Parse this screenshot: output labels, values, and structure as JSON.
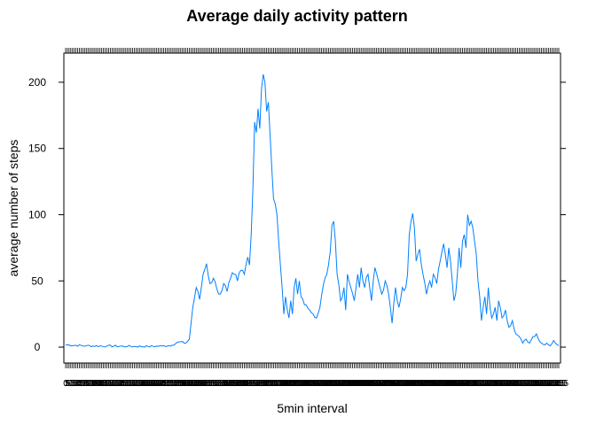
{
  "chart_data": {
    "type": "line",
    "title": "Average daily activity pattern",
    "xlabel": "5min interval",
    "ylabel": "average number of steps",
    "ylim": [
      -12,
      222
    ],
    "yticks": [
      0,
      50,
      100,
      150,
      200
    ],
    "n_intervals": 288,
    "grid": false,
    "legend": "none",
    "line_color": "#0080ff",
    "keypoints": [
      [
        0,
        1.7
      ],
      [
        12,
        1.0
      ],
      [
        24,
        0.8
      ],
      [
        36,
        0.6
      ],
      [
        48,
        0.5
      ],
      [
        56,
        0.8
      ],
      [
        62,
        1.5
      ],
      [
        66,
        4.0
      ],
      [
        70,
        3.0
      ],
      [
        72,
        6.0
      ],
      [
        74,
        30
      ],
      [
        76,
        45
      ],
      [
        78,
        36
      ],
      [
        80,
        55
      ],
      [
        82,
        63
      ],
      [
        84,
        48
      ],
      [
        86,
        52
      ],
      [
        88,
        44
      ],
      [
        90,
        40
      ],
      [
        92,
        48
      ],
      [
        94,
        42
      ],
      [
        96,
        52
      ],
      [
        98,
        55
      ],
      [
        100,
        50
      ],
      [
        102,
        58
      ],
      [
        104,
        55
      ],
      [
        106,
        68
      ],
      [
        107,
        62
      ],
      [
        108,
        85
      ],
      [
        109,
        120
      ],
      [
        110,
        170
      ],
      [
        111,
        162
      ],
      [
        112,
        180
      ],
      [
        113,
        165
      ],
      [
        114,
        195
      ],
      [
        115,
        206
      ],
      [
        116,
        200
      ],
      [
        117,
        178
      ],
      [
        118,
        185
      ],
      [
        119,
        160
      ],
      [
        120,
        135
      ],
      [
        121,
        112
      ],
      [
        122,
        108
      ],
      [
        123,
        100
      ],
      [
        124,
        80
      ],
      [
        125,
        62
      ],
      [
        126,
        45
      ],
      [
        127,
        25
      ],
      [
        128,
        38
      ],
      [
        129,
        28
      ],
      [
        130,
        22
      ],
      [
        131,
        35
      ],
      [
        132,
        25
      ],
      [
        133,
        45
      ],
      [
        134,
        52
      ],
      [
        135,
        40
      ],
      [
        136,
        50
      ],
      [
        137,
        38
      ],
      [
        140,
        32
      ],
      [
        142,
        28
      ],
      [
        144,
        25
      ],
      [
        146,
        22
      ],
      [
        148,
        30
      ],
      [
        150,
        47
      ],
      [
        152,
        55
      ],
      [
        154,
        72
      ],
      [
        155,
        92
      ],
      [
        156,
        95
      ],
      [
        157,
        80
      ],
      [
        158,
        55
      ],
      [
        160,
        35
      ],
      [
        162,
        45
      ],
      [
        163,
        28
      ],
      [
        164,
        55
      ],
      [
        166,
        45
      ],
      [
        168,
        35
      ],
      [
        170,
        55
      ],
      [
        171,
        45
      ],
      [
        172,
        60
      ],
      [
        174,
        45
      ],
      [
        176,
        55
      ],
      [
        178,
        35
      ],
      [
        180,
        60
      ],
      [
        182,
        50
      ],
      [
        184,
        40
      ],
      [
        186,
        50
      ],
      [
        188,
        40
      ],
      [
        189,
        30
      ],
      [
        190,
        18
      ],
      [
        192,
        45
      ],
      [
        193,
        35
      ],
      [
        194,
        30
      ],
      [
        196,
        45
      ],
      [
        198,
        45
      ],
      [
        199,
        55
      ],
      [
        200,
        85
      ],
      [
        201,
        95
      ],
      [
        202,
        101
      ],
      [
        203,
        90
      ],
      [
        204,
        65
      ],
      [
        205,
        70
      ],
      [
        206,
        74
      ],
      [
        208,
        55
      ],
      [
        210,
        40
      ],
      [
        212,
        50
      ],
      [
        213,
        45
      ],
      [
        214,
        55
      ],
      [
        216,
        48
      ],
      [
        218,
        65
      ],
      [
        219,
        72
      ],
      [
        220,
        78
      ],
      [
        221,
        70
      ],
      [
        222,
        60
      ],
      [
        223,
        75
      ],
      [
        224,
        65
      ],
      [
        225,
        50
      ],
      [
        226,
        35
      ],
      [
        227,
        40
      ],
      [
        228,
        55
      ],
      [
        229,
        75
      ],
      [
        230,
        60
      ],
      [
        231,
        80
      ],
      [
        232,
        85
      ],
      [
        233,
        75
      ],
      [
        234,
        100
      ],
      [
        235,
        92
      ],
      [
        236,
        95
      ],
      [
        237,
        90
      ],
      [
        238,
        80
      ],
      [
        239,
        70
      ],
      [
        240,
        50
      ],
      [
        241,
        38
      ],
      [
        242,
        20
      ],
      [
        243,
        30
      ],
      [
        244,
        38
      ],
      [
        245,
        25
      ],
      [
        246,
        45
      ],
      [
        247,
        30
      ],
      [
        248,
        22
      ],
      [
        250,
        30
      ],
      [
        251,
        20
      ],
      [
        252,
        35
      ],
      [
        254,
        22
      ],
      [
        256,
        28
      ],
      [
        258,
        15
      ],
      [
        260,
        20
      ],
      [
        262,
        10
      ],
      [
        264,
        8
      ],
      [
        266,
        3
      ],
      [
        268,
        6
      ],
      [
        270,
        3
      ],
      [
        272,
        8
      ],
      [
        274,
        10
      ],
      [
        276,
        4
      ],
      [
        278,
        2
      ],
      [
        280,
        3
      ],
      [
        282,
        1
      ],
      [
        284,
        5
      ],
      [
        286,
        2
      ],
      [
        287,
        1.1
      ]
    ]
  }
}
